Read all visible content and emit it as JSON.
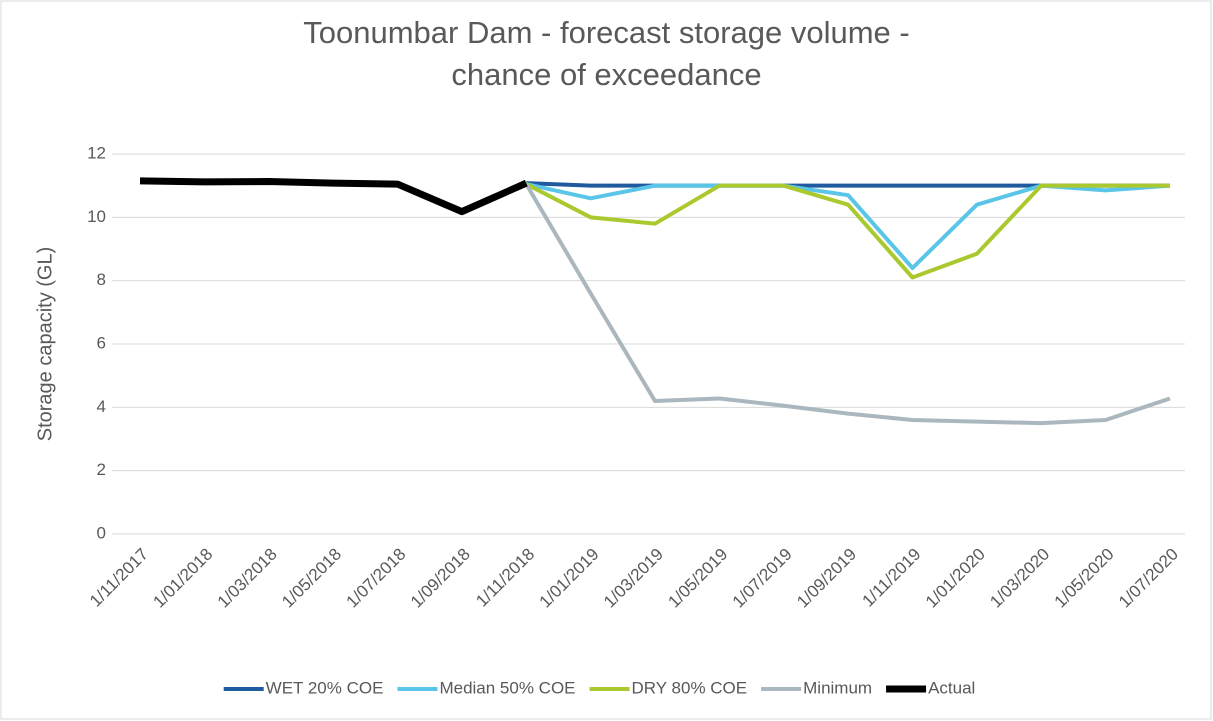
{
  "chart_data": {
    "type": "line",
    "title": "Toonumbar Dam - forecast storage volume - chance of exceedance",
    "y_label": "Storage capacity (GL)",
    "categories": [
      "1/11/2017",
      "1/01/2018",
      "1/03/2018",
      "1/05/2018",
      "1/07/2018",
      "1/09/2018",
      "1/11/2018",
      "1/01/2019",
      "1/03/2019",
      "1/05/2019",
      "1/07/2019",
      "1/09/2019",
      "1/11/2019",
      "1/01/2020",
      "1/03/2020",
      "1/05/2020",
      "1/07/2020"
    ],
    "series": [
      {
        "name": "WET 20% COE",
        "color": "#1f5a9e",
        "values": [
          null,
          null,
          null,
          null,
          null,
          null,
          11.08,
          11.0,
          11.0,
          11.0,
          11.0,
          11.0,
          11.0,
          11.0,
          11.0,
          11.0,
          11.0
        ]
      },
      {
        "name": "Median 50% COE",
        "color": "#5bc5e8",
        "values": [
          null,
          null,
          null,
          null,
          null,
          null,
          11.05,
          10.6,
          11.0,
          11.0,
          11.0,
          10.7,
          8.4,
          10.4,
          11.0,
          10.85,
          11.0
        ]
      },
      {
        "name": "DRY 80% COE",
        "color": "#a9c92e",
        "values": [
          null,
          null,
          null,
          null,
          null,
          null,
          11.05,
          10.0,
          9.8,
          11.0,
          11.0,
          10.4,
          8.1,
          8.85,
          11.0,
          11.0,
          11.0
        ]
      },
      {
        "name": "Minimum",
        "color": "#aab7bf",
        "values": [
          null,
          null,
          null,
          null,
          null,
          null,
          11.05,
          7.6,
          4.2,
          4.28,
          4.05,
          3.8,
          3.6,
          3.55,
          3.5,
          3.6,
          4.28
        ]
      },
      {
        "name": "Actual",
        "color": "#000000",
        "values": [
          11.15,
          11.12,
          11.13,
          11.08,
          11.05,
          10.18,
          11.08,
          null,
          null,
          null,
          null,
          null,
          null,
          null,
          null,
          null,
          null
        ]
      }
    ],
    "ylim": [
      0,
      12
    ],
    "yticks": [
      0,
      2,
      4,
      6,
      8,
      10,
      12
    ],
    "grid": true,
    "legend": "bottom"
  }
}
